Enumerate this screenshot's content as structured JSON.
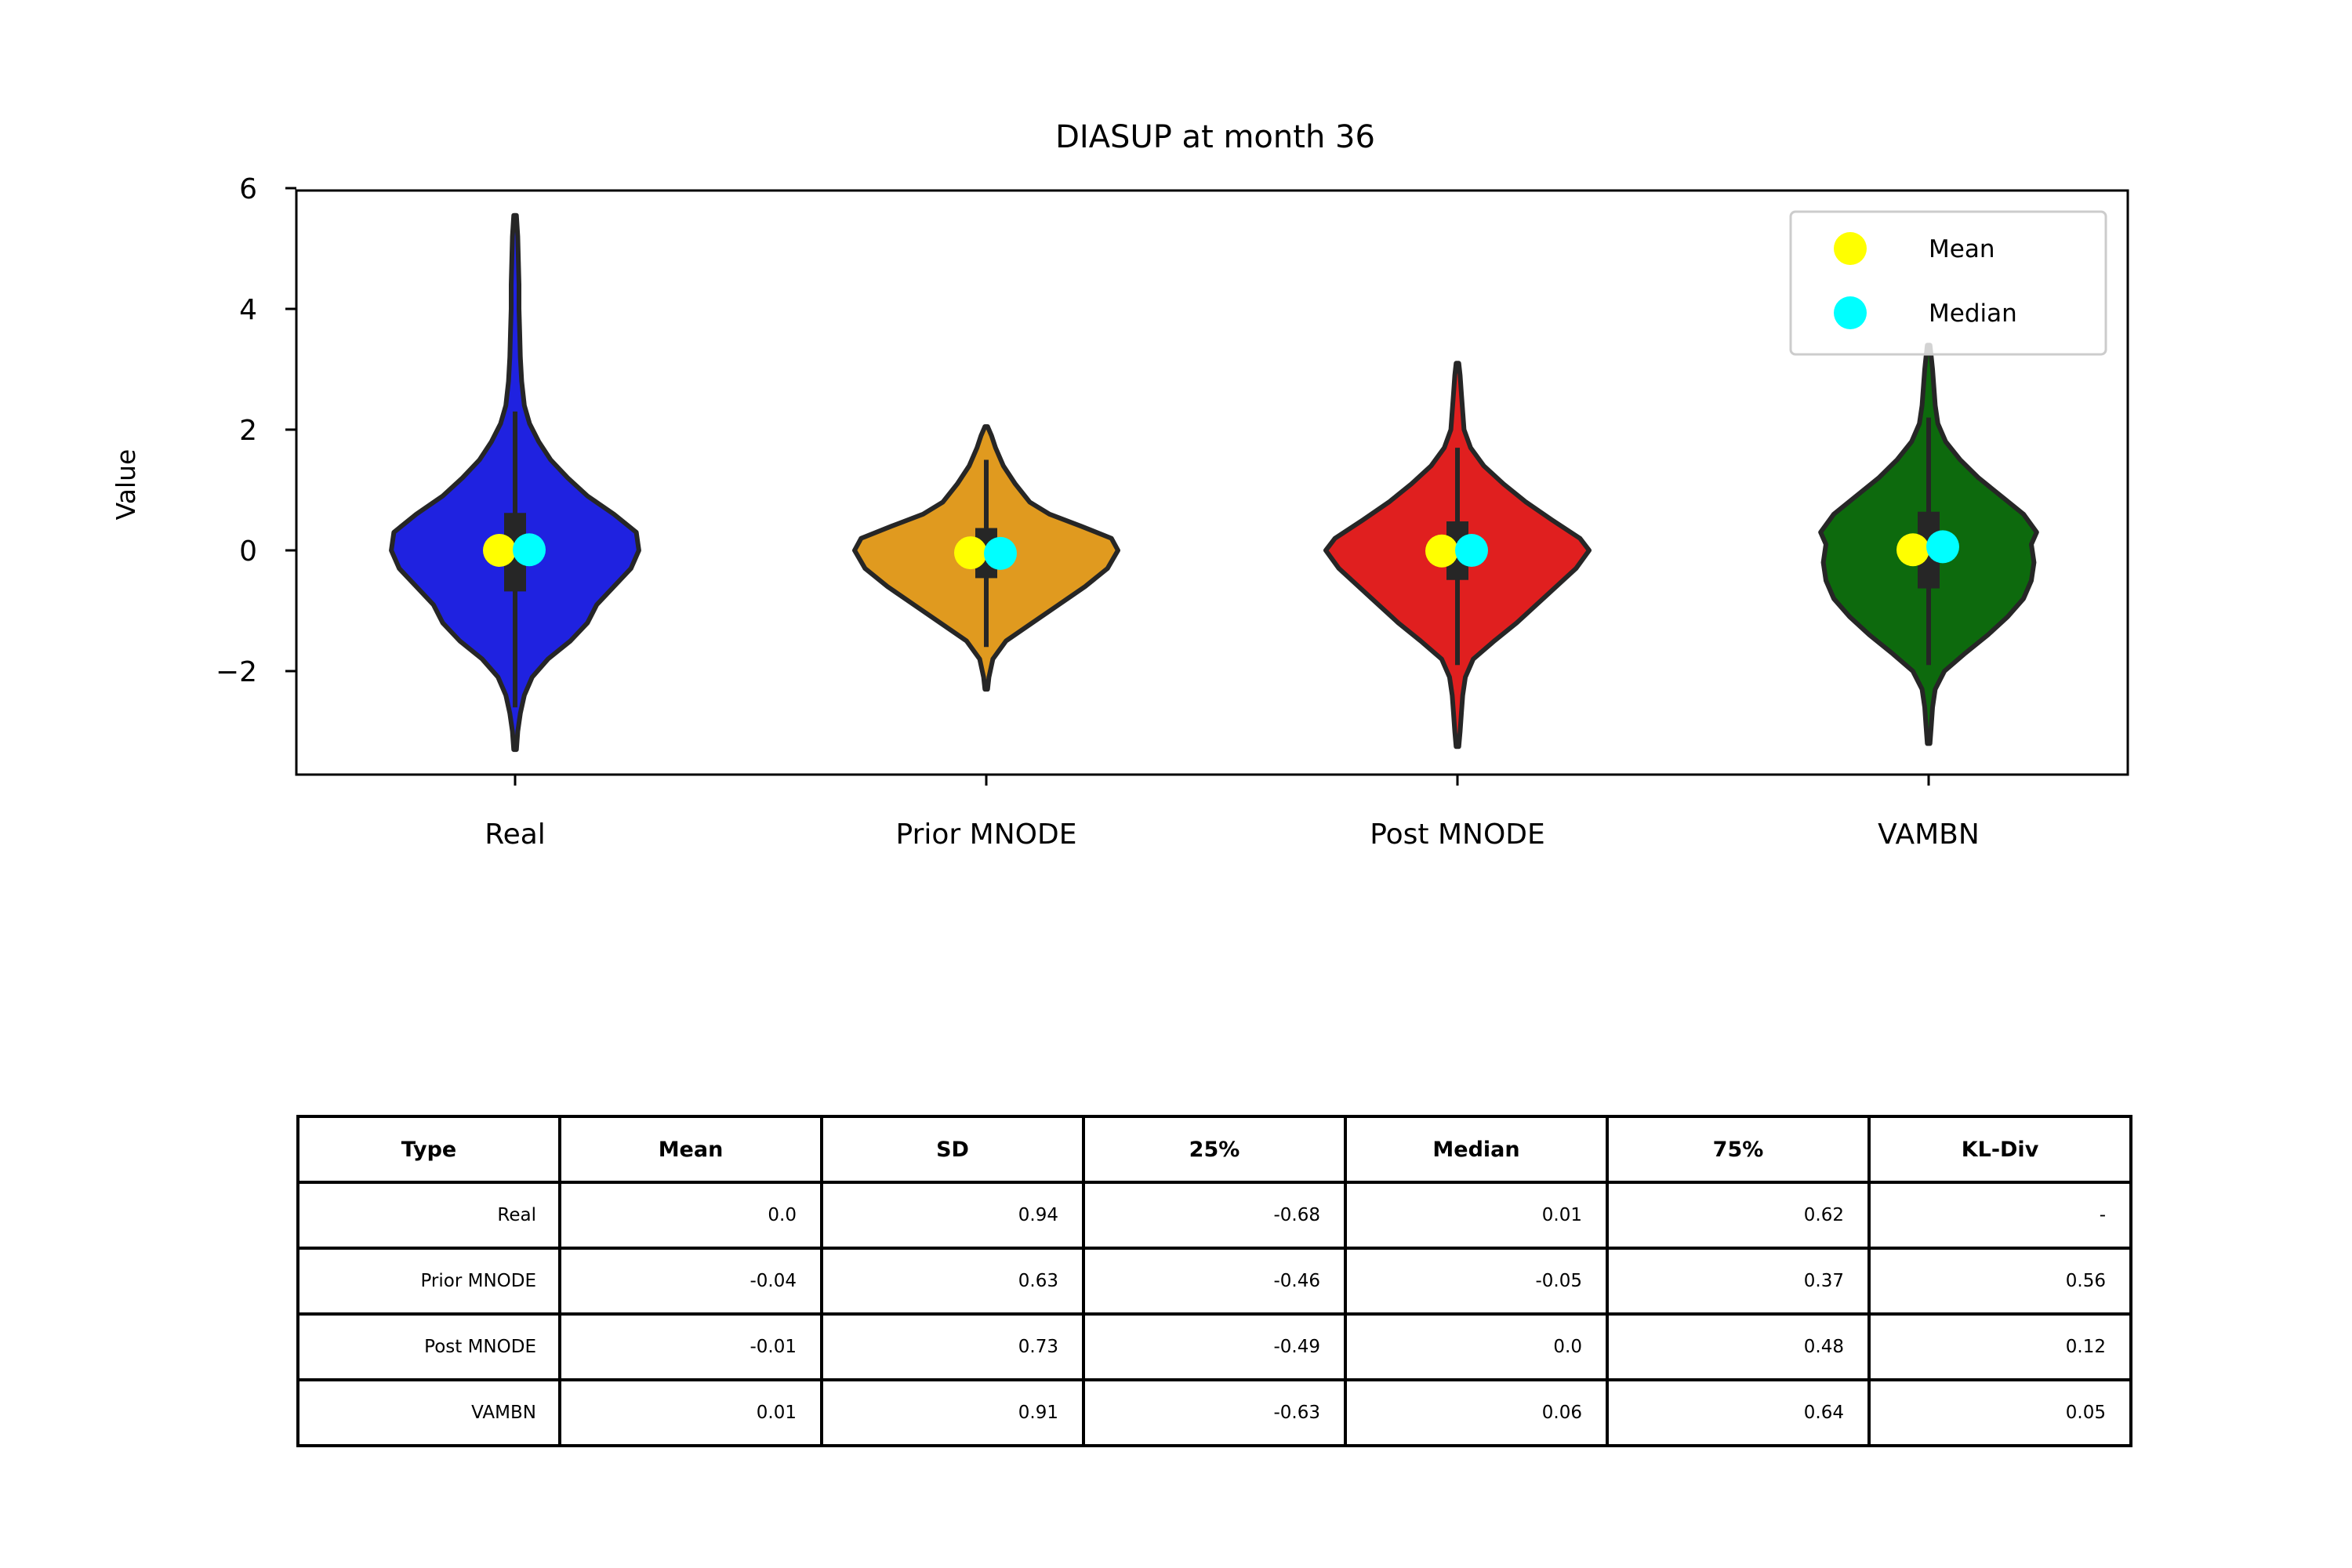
{
  "chart_data": {
    "type": "violin",
    "title": "DIASUP at month 36",
    "xlabel": "",
    "ylabel": "Value",
    "ylim": [
      -3.7,
      6.0
    ],
    "yticks": [
      -2,
      0,
      2,
      4,
      6
    ],
    "yticklabels": [
      "−2",
      "0",
      "2",
      "4",
      "6"
    ],
    "categories": [
      "Real",
      "Prior MNODE",
      "Post MNODE",
      "VAMBN"
    ],
    "colors": [
      "#1f22e0",
      "#e09a1f",
      "#e01f1f",
      "#0d6a0d"
    ],
    "marker_colors": {
      "mean": "#ffff00",
      "median": "#00ffff"
    },
    "legend": {
      "position": "top-right",
      "entries": [
        "Mean",
        "Median"
      ]
    },
    "grid": false,
    "series": [
      {
        "name": "Real",
        "mean": 0.0,
        "median": 0.01,
        "q1": -0.68,
        "q3": 0.62,
        "whisker": [
          -2.6,
          2.3
        ],
        "range": [
          -3.3,
          5.55
        ],
        "profile": [
          [
            -3.3,
            0.01
          ],
          [
            -3.0,
            0.02
          ],
          [
            -2.7,
            0.04
          ],
          [
            -2.4,
            0.07
          ],
          [
            -2.1,
            0.13
          ],
          [
            -1.8,
            0.25
          ],
          [
            -1.5,
            0.42
          ],
          [
            -1.2,
            0.55
          ],
          [
            -0.9,
            0.62
          ],
          [
            -0.6,
            0.75
          ],
          [
            -0.3,
            0.88
          ],
          [
            0.0,
            0.94
          ],
          [
            0.3,
            0.92
          ],
          [
            0.6,
            0.75
          ],
          [
            0.9,
            0.55
          ],
          [
            1.2,
            0.4
          ],
          [
            1.5,
            0.27
          ],
          [
            1.8,
            0.18
          ],
          [
            2.1,
            0.11
          ],
          [
            2.4,
            0.07
          ],
          [
            2.8,
            0.05
          ],
          [
            3.2,
            0.04
          ],
          [
            3.6,
            0.035
          ],
          [
            4.0,
            0.03
          ],
          [
            4.4,
            0.03
          ],
          [
            4.8,
            0.025
          ],
          [
            5.2,
            0.02
          ],
          [
            5.55,
            0.01
          ]
        ]
      },
      {
        "name": "Prior MNODE",
        "mean": -0.04,
        "median": -0.05,
        "q1": -0.46,
        "q3": 0.37,
        "whisker": [
          -1.6,
          1.5
        ],
        "range": [
          -2.3,
          2.05
        ],
        "profile": [
          [
            -2.3,
            0.01
          ],
          [
            -2.1,
            0.02
          ],
          [
            -1.8,
            0.05
          ],
          [
            -1.5,
            0.15
          ],
          [
            -1.2,
            0.35
          ],
          [
            -0.9,
            0.55
          ],
          [
            -0.6,
            0.75
          ],
          [
            -0.3,
            0.92
          ],
          [
            0.0,
            1.0
          ],
          [
            0.2,
            0.95
          ],
          [
            0.4,
            0.72
          ],
          [
            0.6,
            0.48
          ],
          [
            0.8,
            0.33
          ],
          [
            1.1,
            0.22
          ],
          [
            1.4,
            0.13
          ],
          [
            1.7,
            0.07
          ],
          [
            1.9,
            0.04
          ],
          [
            2.05,
            0.01
          ]
        ]
      },
      {
        "name": "Post MNODE",
        "mean": -0.01,
        "median": 0.0,
        "q1": -0.49,
        "q3": 0.48,
        "whisker": [
          -1.9,
          1.7
        ],
        "range": [
          -3.25,
          3.1
        ],
        "profile": [
          [
            -3.25,
            0.01
          ],
          [
            -3.0,
            0.02
          ],
          [
            -2.7,
            0.03
          ],
          [
            -2.4,
            0.04
          ],
          [
            -2.1,
            0.06
          ],
          [
            -1.8,
            0.12
          ],
          [
            -1.5,
            0.28
          ],
          [
            -1.2,
            0.45
          ],
          [
            -0.9,
            0.6
          ],
          [
            -0.6,
            0.75
          ],
          [
            -0.3,
            0.9
          ],
          [
            0.0,
            1.0
          ],
          [
            0.2,
            0.93
          ],
          [
            0.5,
            0.72
          ],
          [
            0.8,
            0.52
          ],
          [
            1.1,
            0.35
          ],
          [
            1.4,
            0.2
          ],
          [
            1.7,
            0.1
          ],
          [
            2.0,
            0.05
          ],
          [
            2.3,
            0.04
          ],
          [
            2.6,
            0.03
          ],
          [
            2.9,
            0.02
          ],
          [
            3.1,
            0.01
          ]
        ]
      },
      {
        "name": "VAMBN",
        "mean": 0.01,
        "median": 0.06,
        "q1": -0.63,
        "q3": 0.64,
        "whisker": [
          -1.9,
          2.2
        ],
        "range": [
          -3.2,
          3.4
        ],
        "profile": [
          [
            -3.2,
            0.01
          ],
          [
            -2.9,
            0.02
          ],
          [
            -2.6,
            0.03
          ],
          [
            -2.3,
            0.05
          ],
          [
            -2.0,
            0.12
          ],
          [
            -1.7,
            0.28
          ],
          [
            -1.4,
            0.45
          ],
          [
            -1.1,
            0.6
          ],
          [
            -0.8,
            0.72
          ],
          [
            -0.5,
            0.78
          ],
          [
            -0.2,
            0.8
          ],
          [
            0.1,
            0.78
          ],
          [
            0.3,
            0.82
          ],
          [
            0.6,
            0.72
          ],
          [
            0.9,
            0.55
          ],
          [
            1.2,
            0.38
          ],
          [
            1.5,
            0.24
          ],
          [
            1.8,
            0.13
          ],
          [
            2.1,
            0.07
          ],
          [
            2.4,
            0.05
          ],
          [
            2.7,
            0.04
          ],
          [
            3.0,
            0.03
          ],
          [
            3.2,
            0.02
          ],
          [
            3.4,
            0.01
          ]
        ]
      }
    ]
  },
  "table": {
    "headers": [
      "Type",
      "Mean",
      "SD",
      "25%",
      "Median",
      "75%",
      "KL-Div"
    ],
    "rows": [
      [
        "Real",
        "0.0",
        "0.94",
        "-0.68",
        "0.01",
        "0.62",
        "-"
      ],
      [
        "Prior MNODE",
        "-0.04",
        "0.63",
        "-0.46",
        "-0.05",
        "0.37",
        "0.56"
      ],
      [
        "Post MNODE",
        "-0.01",
        "0.73",
        "-0.49",
        "0.0",
        "0.48",
        "0.12"
      ],
      [
        "VAMBN",
        "0.01",
        "0.91",
        "-0.63",
        "0.06",
        "0.64",
        "0.05"
      ]
    ]
  }
}
